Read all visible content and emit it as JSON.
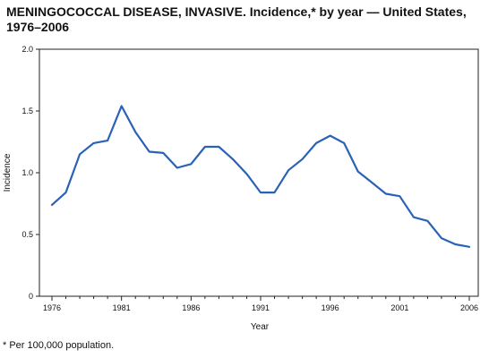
{
  "chart_data": {
    "type": "line",
    "title": "MENINGOCOCCAL DISEASE, INVASIVE. Incidence,* by year — United States, 1976–2006",
    "xlabel": "Year",
    "ylabel": "Incidence",
    "xlim": [
      1976,
      2006
    ],
    "ylim": [
      0,
      2.0
    ],
    "x_ticks": [
      "1976",
      "1981",
      "1986",
      "1991",
      "1996",
      "2001",
      "2006"
    ],
    "y_ticks": [
      "0",
      "0.5",
      "1.0",
      "1.5",
      "2.0"
    ],
    "grid": false,
    "line_color": "#2a62b5",
    "x": [
      1976,
      1977,
      1978,
      1979,
      1980,
      1981,
      1982,
      1983,
      1984,
      1985,
      1986,
      1987,
      1988,
      1989,
      1990,
      1991,
      1992,
      1993,
      1994,
      1995,
      1996,
      1997,
      1998,
      1999,
      2000,
      2001,
      2002,
      2003,
      2004,
      2005,
      2006
    ],
    "series": [
      {
        "values": [
          0.74,
          0.84,
          1.15,
          1.24,
          1.26,
          1.54,
          1.33,
          1.17,
          1.16,
          1.04,
          1.07,
          1.21,
          1.21,
          1.11,
          0.99,
          0.84,
          0.84,
          1.02,
          1.11,
          1.24,
          1.3,
          1.24,
          1.01,
          0.92,
          0.83,
          0.81,
          0.64,
          0.61,
          0.47,
          0.42,
          0.4
        ]
      }
    ],
    "footnote": "* Per 100,000 population."
  }
}
